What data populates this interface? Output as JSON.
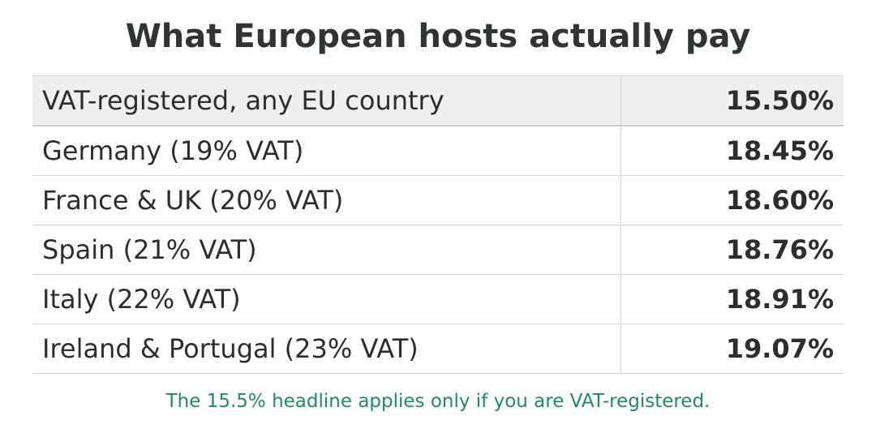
{
  "title": "What European hosts actually pay",
  "table": {
    "rows": [
      [
        "VAT-registered, any EU country",
        "15.50%"
      ],
      [
        "Germany (19% VAT)",
        "18.45%"
      ],
      [
        "France & UK (20% VAT)",
        "18.60%"
      ],
      [
        "Spain (21% VAT)",
        "18.76%"
      ],
      [
        "Italy (22% VAT)",
        "18.91%"
      ],
      [
        "Ireland & Portugal (23% VAT)",
        "19.07%"
      ]
    ]
  },
  "note": "The 15.5% headline applies only if you are VAT-registered."
}
